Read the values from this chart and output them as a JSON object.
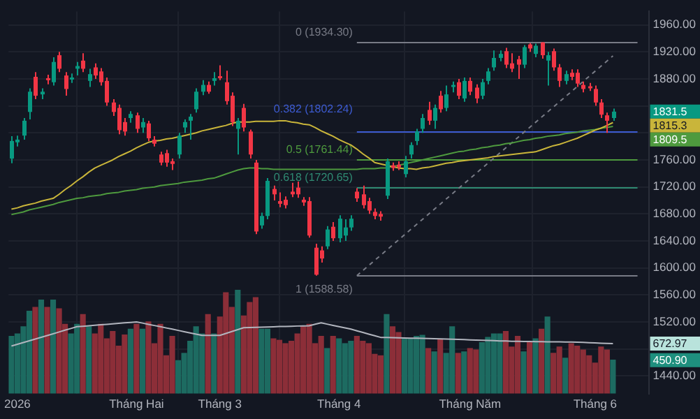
{
  "chart_data": {
    "type": "candlestick",
    "categories": [
      null,
      "2026",
      null,
      null,
      null,
      null,
      null,
      null,
      null,
      null,
      null,
      null,
      null,
      null,
      null,
      null,
      null,
      null,
      null,
      null,
      null,
      "Tháng Hai",
      null,
      null,
      null,
      null,
      null,
      null,
      null,
      null,
      null,
      null,
      null,
      null,
      null,
      "Tháng 3",
      null,
      null,
      null,
      null,
      null,
      null,
      null,
      null,
      null,
      null,
      null,
      null,
      null,
      null,
      null,
      null,
      null,
      null,
      null,
      "Tháng 4",
      null,
      null,
      null,
      null,
      null,
      null,
      null,
      null,
      null,
      null,
      null,
      null,
      null,
      null,
      null,
      null,
      null,
      null,
      null,
      null,
      null,
      "Tháng Năm",
      null,
      null,
      null,
      null,
      null,
      null,
      null,
      null,
      null,
      null,
      null,
      null,
      null,
      null,
      null,
      null,
      null,
      null,
      null,
      null,
      "Tháng 6",
      null,
      null,
      null
    ],
    "ohlc": [
      [
        1762,
        1795,
        1755,
        1788
      ],
      [
        1786,
        1796,
        1780,
        1790
      ],
      [
        1796,
        1822,
        1790,
        1818
      ],
      [
        1831,
        1866,
        1820,
        1861
      ],
      [
        1883,
        1890,
        1850,
        1855
      ],
      [
        1857,
        1866,
        1850,
        1861
      ],
      [
        1881,
        1886,
        1872,
        1878
      ],
      [
        1875,
        1912,
        1870,
        1905
      ],
      [
        1915,
        1920,
        1890,
        1895
      ],
      [
        1885,
        1890,
        1855,
        1865
      ],
      [
        1879,
        1888,
        1874,
        1882
      ],
      [
        1895,
        1905,
        1885,
        1899
      ],
      [
        1907,
        1918,
        1890,
        1895
      ],
      [
        1877,
        1895,
        1868,
        1887
      ],
      [
        1897,
        1903,
        1880,
        1885
      ],
      [
        1891,
        1896,
        1870,
        1875
      ],
      [
        1877,
        1882,
        1840,
        1845
      ],
      [
        1845,
        1850,
        1825,
        1831
      ],
      [
        1837,
        1842,
        1798,
        1804
      ],
      [
        1816,
        1822,
        1796,
        1802
      ],
      [
        1822,
        1832,
        1815,
        1828
      ],
      [
        1826,
        1830,
        1800,
        1806
      ],
      [
        1808,
        1822,
        1800,
        1816
      ],
      [
        1814,
        1818,
        1788,
        1792
      ],
      [
        1790,
        1795,
        1780,
        1784
      ],
      [
        1768,
        1772,
        1752,
        1756
      ],
      [
        1770,
        1775,
        1750,
        1756
      ],
      [
        1758,
        1762,
        1745,
        1754
      ],
      [
        1768,
        1800,
        1762,
        1796
      ],
      [
        1808,
        1820,
        1800,
        1816
      ],
      [
        1818,
        1828,
        1790,
        1824
      ],
      [
        1835,
        1866,
        1830,
        1861
      ],
      [
        1861,
        1878,
        1856,
        1871
      ],
      [
        1871,
        1876,
        1858,
        1861
      ],
      [
        1877,
        1890,
        1870,
        1881
      ],
      [
        1884,
        1900,
        1878,
        1881
      ],
      [
        1875,
        1892,
        1842,
        1847
      ],
      [
        1855,
        1860,
        1810,
        1816
      ],
      [
        1806,
        1822,
        1768,
        1818
      ],
      [
        1837,
        1843,
        1802,
        1808
      ],
      [
        1802,
        1805,
        1762,
        1768
      ],
      [
        1756,
        1760,
        1650,
        1654
      ],
      [
        1663,
        1682,
        1658,
        1677
      ],
      [
        1677,
        1733,
        1672,
        1729
      ],
      [
        1717,
        1722,
        1700,
        1709
      ],
      [
        1699,
        1712,
        1690,
        1695
      ],
      [
        1701,
        1706,
        1688,
        1693
      ],
      [
        1713,
        1726,
        1705,
        1709
      ],
      [
        1719,
        1728,
        1704,
        1709
      ],
      [
        1701,
        1705,
        1692,
        1697
      ],
      [
        1699,
        1705,
        1645,
        1648
      ],
      [
        1630,
        1636,
        1588.58,
        1590
      ],
      [
        1626,
        1632,
        1608,
        1614
      ],
      [
        1632,
        1662,
        1628,
        1657
      ],
      [
        1661,
        1668,
        1640,
        1644
      ],
      [
        1644,
        1678,
        1638,
        1673
      ],
      [
        1648,
        1672,
        1640,
        1660
      ],
      [
        1660,
        1678,
        1655,
        1673
      ],
      [
        1713,
        1718,
        1698,
        1703
      ],
      [
        1709,
        1722,
        1688,
        1693
      ],
      [
        1699,
        1704,
        1680,
        1685
      ],
      [
        1683,
        1688,
        1672,
        1677
      ],
      [
        1680,
        1684,
        1670,
        1676
      ],
      [
        1707,
        1762,
        1702,
        1758
      ],
      [
        1752,
        1756,
        1744,
        1748
      ],
      [
        1753,
        1758,
        1745,
        1749
      ],
      [
        1739,
        1766,
        1734,
        1758
      ],
      [
        1768,
        1786,
        1762,
        1782
      ],
      [
        1788,
        1806,
        1782,
        1802
      ],
      [
        1806,
        1828,
        1800,
        1822
      ],
      [
        1834,
        1846,
        1812,
        1818
      ],
      [
        1818,
        1842,
        1806,
        1837
      ],
      [
        1855,
        1862,
        1830,
        1835
      ],
      [
        1837,
        1870,
        1832,
        1857
      ],
      [
        1868,
        1876,
        1860,
        1871
      ],
      [
        1875,
        1880,
        1850,
        1855
      ],
      [
        1851,
        1882,
        1846,
        1877
      ],
      [
        1877,
        1882,
        1856,
        1861
      ],
      [
        1867,
        1872,
        1844,
        1851
      ],
      [
        1855,
        1880,
        1850,
        1875
      ],
      [
        1877,
        1896,
        1872,
        1891
      ],
      [
        1897,
        1922,
        1892,
        1911
      ],
      [
        1911,
        1922,
        1906,
        1917
      ],
      [
        1921,
        1926,
        1896,
        1901
      ],
      [
        1903,
        1918,
        1890,
        1895
      ],
      [
        1909,
        1914,
        1880,
        1901
      ],
      [
        1901,
        1930,
        1896,
        1927
      ],
      [
        1931,
        1933,
        1920,
        1925
      ],
      [
        1917,
        1932,
        1912,
        1929
      ],
      [
        1934,
        1934.3,
        1910,
        1915
      ],
      [
        1907,
        1920,
        1870,
        1915
      ],
      [
        1921,
        1925,
        1892,
        1897
      ],
      [
        1897,
        1902,
        1868,
        1877
      ],
      [
        1877,
        1892,
        1872,
        1887
      ],
      [
        1889,
        1894,
        1878,
        1883
      ],
      [
        1889,
        1894,
        1868,
        1873
      ],
      [
        1871,
        1876,
        1860,
        1865
      ],
      [
        1869,
        1874,
        1862,
        1866
      ],
      [
        1865,
        1870,
        1840,
        1845
      ],
      [
        1845,
        1850,
        1822,
        1827
      ],
      [
        1826,
        1830,
        1800,
        1818
      ],
      [
        1822,
        1836,
        1818,
        1831.5
      ]
    ],
    "series": [
      {
        "type": "bar",
        "axis": "y2",
        "colors": [
          "#1d6b61",
          "#1d6b61",
          "#1d6b61",
          "#1d6b61",
          "#8c2e38",
          "#1d6b61",
          "#8c2e38",
          "#1d6b61",
          "#8c2e38",
          "#8c2e38",
          "#1d6b61",
          "#1d6b61",
          "#8c2e38",
          "#1d6b61",
          "#8c2e38",
          "#8c2e38",
          "#8c2e38",
          "#8c2e38",
          "#8c2e38",
          "#8c2e38",
          "#1d6b61",
          "#8c2e38",
          "#1d6b61",
          "#8c2e38",
          "#8c2e38",
          "#8c2e38",
          "#8c2e38",
          "#8c2e38",
          "#1d6b61",
          "#1d6b61",
          "#1d6b61",
          "#1d6b61",
          "#1d6b61",
          "#8c2e38",
          "#1d6b61",
          "#8c2e38",
          "#8c2e38",
          "#8c2e38",
          "#1d6b61",
          "#8c2e38",
          "#8c2e38",
          "#8c2e38",
          "#1d6b61",
          "#1d6b61",
          "#8c2e38",
          "#8c2e38",
          "#8c2e38",
          "#8c2e38",
          "#8c2e38",
          "#8c2e38",
          "#8c2e38",
          "#8c2e38",
          "#8c2e38",
          "#1d6b61",
          "#8c2e38",
          "#1d6b61",
          "#1d6b61",
          "#1d6b61",
          "#8c2e38",
          "#8c2e38",
          "#8c2e38",
          "#8c2e38",
          "#8c2e38",
          "#1d6b61",
          "#8c2e38",
          "#8c2e38",
          "#1d6b61",
          "#1d6b61",
          "#1d6b61",
          "#1d6b61",
          "#8c2e38",
          "#1d6b61",
          "#8c2e38",
          "#1d6b61",
          "#1d6b61",
          "#8c2e38",
          "#1d6b61",
          "#8c2e38",
          "#8c2e38",
          "#1d6b61",
          "#1d6b61",
          "#1d6b61",
          "#1d6b61",
          "#8c2e38",
          "#8c2e38",
          "#8c2e38",
          "#1d6b61",
          "#8c2e38",
          "#1d6b61",
          "#8c2e38",
          "#1d6b61",
          "#8c2e38",
          "#8c2e38",
          "#1d6b61",
          "#8c2e38",
          "#8c2e38",
          "#8c2e38",
          "#8c2e38",
          "#8c2e38",
          "#8c2e38",
          "#8c2e38",
          "#1d6b61"
        ],
        "values": [
          771,
          803,
          901,
          1110,
          1162,
          1260,
          1162,
          1260,
          1143,
          934,
          803,
          934,
          1064,
          901,
          803,
          934,
          738,
          836,
          640,
          790,
          868,
          934,
          868,
          966,
          673,
          934,
          509,
          771,
          444,
          542,
          705,
          901,
          803,
          1064,
          803,
          1032,
          1358,
          1162,
          1391,
          1045,
          1228,
          1293,
          868,
          868,
          738,
          718,
          673,
          705,
          803,
          901,
          934,
          673,
          771,
          607,
          771,
          738,
          673,
          705,
          771,
          705,
          673,
          529,
          509,
          1064,
          901,
          823,
          738,
          738,
          771,
          784,
          607,
          562,
          725,
          542,
          901,
          542,
          562,
          607,
          588,
          686,
          757,
          803,
          803,
          836,
          627,
          771,
          562,
          692,
          738,
          868,
          1032,
          542,
          627,
          477,
          673,
          640,
          588,
          509,
          411,
          627,
          588,
          450.9
        ]
      },
      {
        "type": "line",
        "axis": "y2",
        "color": "#b2b5be",
        "values": [
          640,
          664,
          687,
          711,
          735,
          759,
          782,
          806,
          830,
          854,
          877,
          901,
          907,
          914,
          920,
          927,
          933,
          940,
          946,
          953,
          959,
          966,
          950,
          933,
          917,
          901,
          884,
          868,
          851,
          834,
          817,
          801,
          784,
          784,
          784,
          784,
          810,
          836,
          862,
          888,
          890,
          893,
          895,
          898,
          900,
          903,
          905,
          907,
          910,
          912,
          914,
          934,
          953,
          936,
          919,
          902,
          885,
          868,
          846,
          824,
          801,
          779,
          757,
          755,
          753,
          751,
          749,
          747,
          746,
          744,
          742,
          740,
          738,
          735,
          732,
          730,
          727,
          724,
          721,
          719,
          716,
          713,
          710,
          708,
          705,
          704,
          703,
          702,
          700,
          699,
          698,
          697,
          696,
          695,
          694,
          692,
          689,
          686,
          683,
          679,
          676,
          672.97
        ]
      },
      {
        "type": "line",
        "color": "#c9b53a",
        "values": [
          1687,
          1689,
          1692,
          1694,
          1696,
          1699,
          1701,
          1703,
          1709,
          1716,
          1722,
          1729,
          1735,
          1742,
          1748,
          1752,
          1756,
          1760,
          1765,
          1769,
          1773,
          1778,
          1782,
          1786,
          1788,
          1789,
          1791,
          1792,
          1794,
          1796,
          1798,
          1800,
          1803,
          1805,
          1807,
          1809,
          1811,
          1814,
          1816,
          1816,
          1816,
          1817,
          1817,
          1817,
          1817,
          1818,
          1818,
          1816,
          1815,
          1813,
          1812,
          1808,
          1803,
          1799,
          1795,
          1790,
          1786,
          1782,
          1776,
          1769,
          1763,
          1756,
          1754,
          1752,
          1750,
          1748,
          1747,
          1747,
          1746,
          1748,
          1749,
          1751,
          1753,
          1755,
          1756,
          1758,
          1759,
          1760,
          1761,
          1762,
          1763,
          1765,
          1766,
          1767,
          1768,
          1769,
          1770,
          1771,
          1772,
          1775,
          1778,
          1781,
          1783,
          1786,
          1789,
          1792,
          1796,
          1800,
          1804,
          1807,
          1811,
          1815.3
        ]
      },
      {
        "type": "line",
        "color": "#4e9a3e",
        "values": [
          1679,
          1681,
          1683,
          1686,
          1688,
          1690,
          1692,
          1694,
          1697,
          1699,
          1701,
          1703,
          1704,
          1706,
          1707,
          1708,
          1710,
          1711,
          1712,
          1714,
          1715,
          1716,
          1718,
          1719,
          1720,
          1722,
          1723,
          1724,
          1725,
          1727,
          1728,
          1729,
          1730,
          1732,
          1733,
          1736,
          1739,
          1742,
          1745,
          1747,
          1748,
          1748,
          1747,
          1747,
          1746,
          1746,
          1746,
          1746,
          1746,
          1746,
          1746,
          1746,
          1746,
          1746,
          1746,
          1746,
          1746,
          1746,
          1746,
          1747,
          1747,
          1747,
          1748,
          1748,
          1750,
          1752,
          1754,
          1756,
          1758,
          1760,
          1762,
          1764,
          1766,
          1768,
          1770,
          1772,
          1773,
          1775,
          1776,
          1778,
          1779,
          1781,
          1782,
          1784,
          1785,
          1787,
          1789,
          1790,
          1792,
          1793,
          1795,
          1796,
          1797,
          1799,
          1800,
          1801,
          1803,
          1804,
          1805,
          1807,
          1808,
          1809.5
        ]
      },
      {
        "type": "line",
        "color": "#787b86",
        "line_style": "dashed",
        "values": [
          null,
          null,
          null,
          null,
          null,
          null,
          null,
          null,
          null,
          null,
          null,
          null,
          null,
          null,
          null,
          null,
          null,
          null,
          null,
          null,
          null,
          null,
          null,
          null,
          null,
          null,
          null,
          null,
          null,
          null,
          null,
          null,
          null,
          null,
          null,
          null,
          null,
          null,
          null,
          null,
          null,
          null,
          null,
          null,
          null,
          null,
          null,
          null,
          null,
          null,
          null,
          null,
          null,
          null,
          null,
          null,
          null,
          null,
          1588.58,
          null,
          null,
          null,
          null,
          null,
          null,
          null,
          null,
          null,
          null,
          null,
          null,
          null,
          null,
          null,
          null,
          null,
          null,
          null,
          null,
          null,
          null,
          null,
          null,
          null,
          null,
          null,
          null,
          null,
          null,
          null,
          null,
          null,
          null,
          null,
          null,
          null,
          null,
          null,
          null,
          null,
          null,
          1914
        ]
      }
    ],
    "ref_lines": [
      {
        "axis": "y",
        "value": 1934.3,
        "label": "0 (1934.30)",
        "color": "#787b86"
      },
      {
        "axis": "y",
        "value": 1802.24,
        "label": "0.382 (1802.24)",
        "color": "#3d5bd1"
      },
      {
        "axis": "y",
        "value": 1761.44,
        "label": "0.5 (1761.44)",
        "color": "#4e9a3e"
      },
      {
        "axis": "y",
        "value": 1720.65,
        "label": "0.618 (1720.65)",
        "color": "#2f8a72"
      },
      {
        "axis": "y",
        "value": 1588.58,
        "label": "1 (1588.58)",
        "color": "#787b86"
      }
    ],
    "annotations": [
      "1831.5",
      "1815.3",
      "1809.5"
    ],
    "ylim": [
      1414,
      1980
    ],
    "yticks": [
      {
        "value": 1440,
        "label": "1440.00"
      },
      {
        "value": 1480,
        "label": null
      },
      {
        "value": 1520,
        "label": "1520.00"
      },
      {
        "value": 1560,
        "label": "1560.00"
      },
      {
        "value": 1600,
        "label": "1600.00"
      },
      {
        "value": 1640,
        "label": "1640.00"
      },
      {
        "value": 1680,
        "label": "1680.00"
      },
      {
        "value": 1720,
        "label": "1720.00"
      },
      {
        "value": 1760,
        "label": "1760.00"
      },
      {
        "value": 1800,
        "label": null
      },
      {
        "value": 1840,
        "label": null
      },
      {
        "value": 1880,
        "label": "1880.00"
      },
      {
        "value": 1920,
        "label": "1920.00"
      },
      {
        "value": 1960,
        "label": "1960.00"
      }
    ],
    "y2lim": [
      0,
      5150
    ],
    "y2ticks": [
      {
        "value": 672.97,
        "label": "672.97"
      },
      {
        "value": 450.9,
        "label": "450.90"
      }
    ],
    "grid": true,
    "legend": false
  }
}
